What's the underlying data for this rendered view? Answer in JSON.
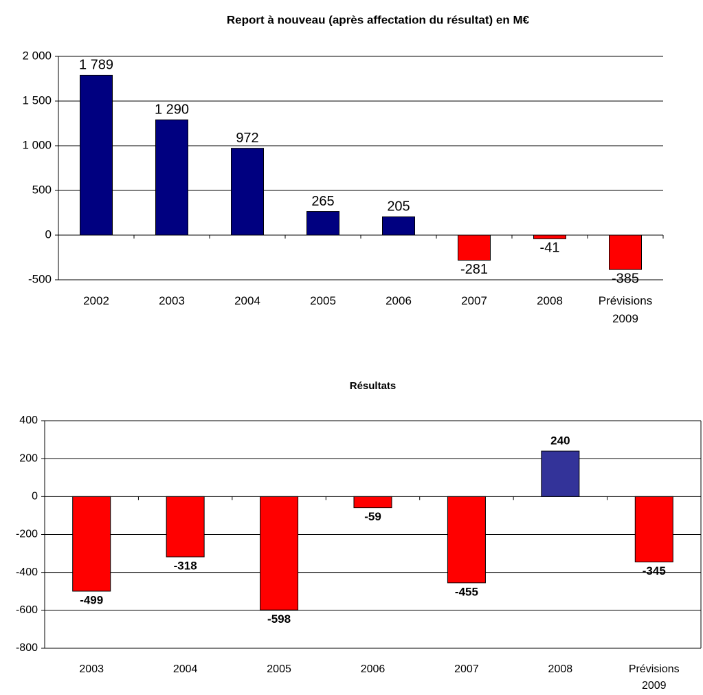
{
  "chart_data": [
    {
      "type": "bar",
      "title": "Report à nouveau (après affectation du résultat) en M€",
      "categories": [
        "2002",
        "2003",
        "2004",
        "2005",
        "2006",
        "2007",
        "2008",
        "Prévisions 2009"
      ],
      "values": [
        1789,
        1290,
        972,
        265,
        205,
        -281,
        -41,
        -385
      ],
      "value_labels": [
        "1 789",
        "1 290",
        "972",
        "265",
        "205",
        "-281",
        "-41",
        "-385"
      ],
      "colors": [
        "#000080",
        "#000080",
        "#000080",
        "#000080",
        "#000080",
        "#ff0000",
        "#ff0000",
        "#ff0000"
      ],
      "ylim": [
        -500,
        2000
      ],
      "yticks": [
        {
          "value": 2000,
          "label": "2 000"
        },
        {
          "value": 1500,
          "label": "1 500"
        },
        {
          "value": 1000,
          "label": "1 000"
        },
        500,
        0,
        -500
      ],
      "grid": true
    },
    {
      "type": "bar",
      "title": "Résultats",
      "categories": [
        "2003",
        "2004",
        "2005",
        "2006",
        "2007",
        "2008",
        "Prévisions 2009"
      ],
      "values": [
        -499,
        -318,
        -598,
        -59,
        -455,
        240,
        -345
      ],
      "colors": [
        "#ff0000",
        "#ff0000",
        "#ff0000",
        "#ff0000",
        "#ff0000",
        "#333399",
        "#ff0000"
      ],
      "ylim": [
        -800,
        400
      ],
      "yticks": [
        400,
        200,
        0,
        -200,
        -400,
        -600,
        -800
      ],
      "grid": true
    }
  ]
}
